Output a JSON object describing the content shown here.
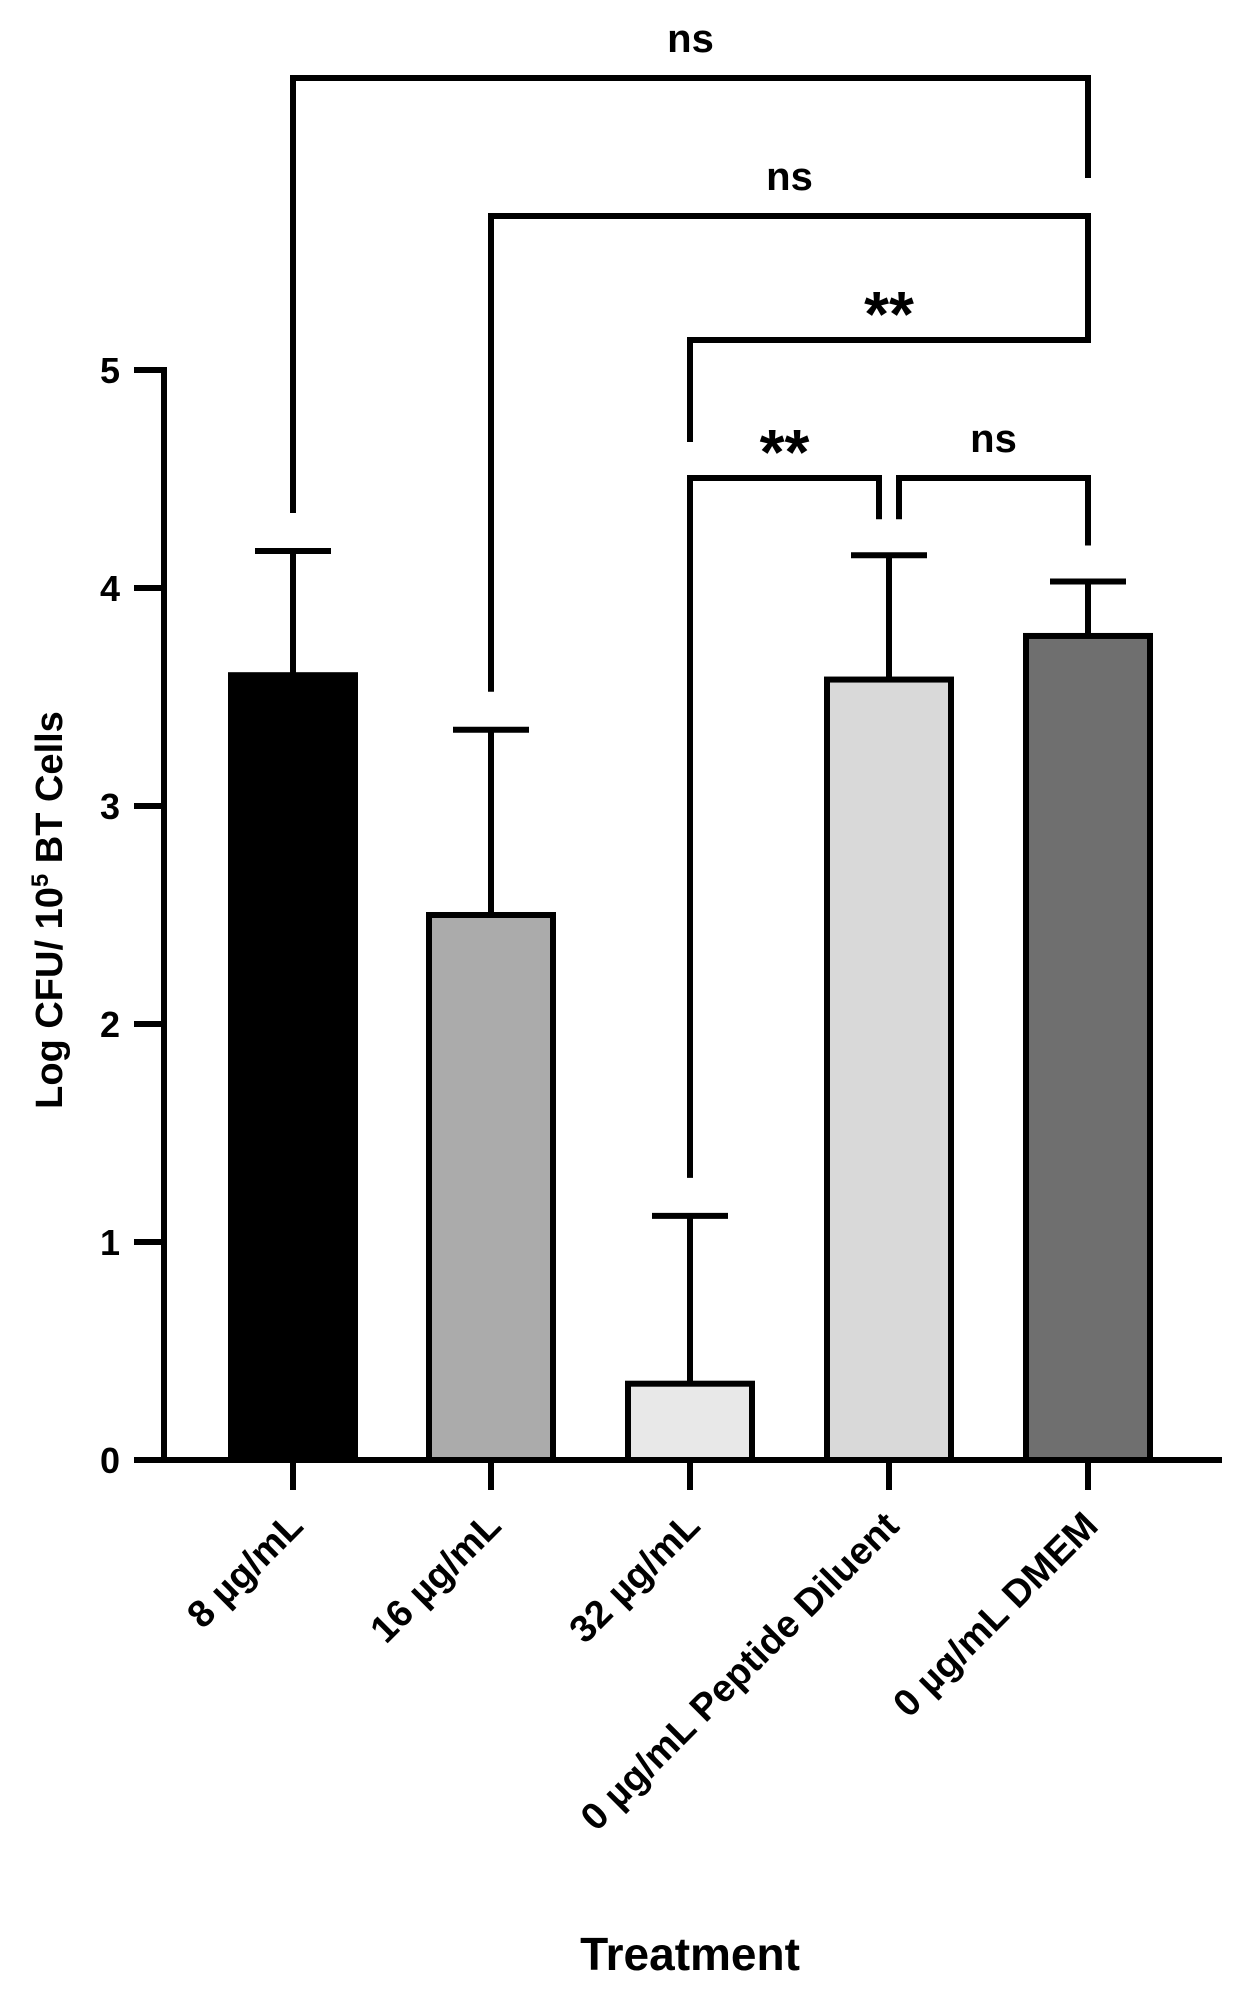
{
  "chart_data": {
    "type": "bar",
    "title": "",
    "xlabel": "Treatment",
    "ylabel": "Log CFU/ 10",
    "ylabel_sup": "5",
    "ylabel_tail": " BT Cells",
    "ylim": [
      0,
      5
    ],
    "yticks": [
      0,
      1,
      2,
      3,
      4,
      5
    ],
    "grid": false,
    "legend": "none",
    "categories": [
      "8  µg/mL",
      "16  µg/mL",
      "32  µg/mL",
      "0 µg/mL Peptide Diluent",
      "0 µg/mL DMEM"
    ],
    "values": [
      3.6,
      2.5,
      0.35,
      3.58,
      3.78
    ],
    "error_upper": [
      0.57,
      0.85,
      0.77,
      0.57,
      0.25
    ],
    "colors": [
      "#000000",
      "#ababab",
      "#e8e8e8",
      "#d9d9d9",
      "#6f6f6f"
    ],
    "comparisons": [
      {
        "from": 0,
        "to": 4,
        "label": "ns"
      },
      {
        "from": 1,
        "to": 4,
        "label": "ns"
      },
      {
        "from": 2,
        "to": 4,
        "label": "**"
      },
      {
        "from": 2,
        "to": 3,
        "label": "**"
      },
      {
        "from": 3,
        "to": 4,
        "label": "ns"
      }
    ]
  }
}
